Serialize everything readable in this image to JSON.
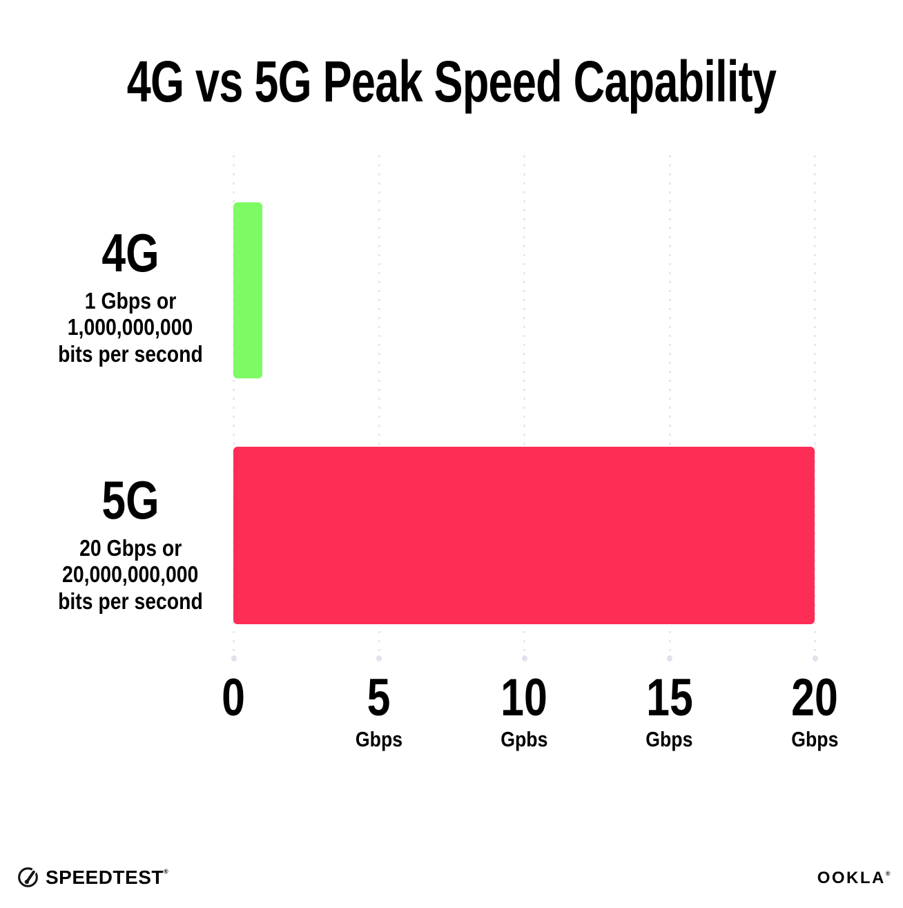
{
  "title": "4G vs 5G Peak Speed Capability",
  "chart_data": {
    "type": "bar",
    "orientation": "horizontal",
    "title": "4G vs 5G Peak Speed Capability",
    "categories": [
      "4G",
      "5G"
    ],
    "values": [
      1,
      20
    ],
    "unit": "Gbps",
    "xlim": [
      0,
      20
    ],
    "grid": "dotted-vertical",
    "rows": [
      {
        "label": "4G",
        "sublabel_lines": [
          "1 Gbps or",
          "1,000,000,000",
          "bits per second"
        ],
        "value_gbps": 1,
        "color": "#7efa64"
      },
      {
        "label": "5G",
        "sublabel_lines": [
          "20 Gbps or",
          "20,000,000,000",
          "bits per second"
        ],
        "value_gbps": 20,
        "color": "#fe2d56"
      }
    ],
    "x_ticks": [
      {
        "value": 0,
        "label": "0",
        "unit": ""
      },
      {
        "value": 5,
        "label": "5",
        "unit": "Gbps"
      },
      {
        "value": 10,
        "label": "10",
        "unit": "Gpbs"
      },
      {
        "value": 15,
        "label": "15",
        "unit": "Gbps"
      },
      {
        "value": 20,
        "label": "20",
        "unit": "Gbps"
      }
    ],
    "colors": {
      "bar_4g": "#7efa64",
      "bar_5g": "#fe2d56",
      "gridline": "#e6e7f0",
      "text": "#000000",
      "background": "#ffffff"
    }
  },
  "footer": {
    "left_logo": "SPEEDTEST",
    "left_trademark": "®",
    "right_logo": "OOKLA",
    "right_trademark": "®"
  }
}
